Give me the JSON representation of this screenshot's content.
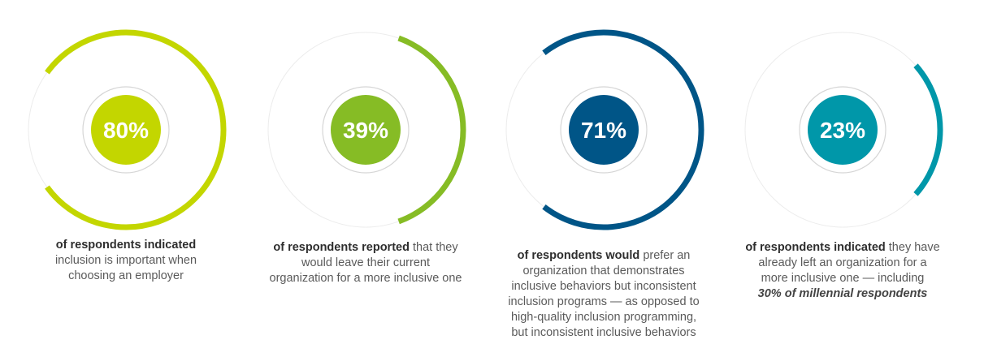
{
  "chart_data": [
    {
      "type": "pie",
      "value": 80,
      "label": "80%",
      "color": "#c3d600",
      "caption": {
        "lead": "of respondents indicated",
        "rest": [
          "inclusion is important when",
          "choosing an employer"
        ]
      }
    },
    {
      "type": "pie",
      "value": 39,
      "label": "39%",
      "color": "#86bc25",
      "caption": {
        "lead": "of respondents reported",
        "rest": [
          "that they",
          "would leave their current",
          "organization for a more inclusive one"
        ]
      }
    },
    {
      "type": "pie",
      "value": 71,
      "label": "71%",
      "color": "#005587",
      "caption": {
        "lead": "of respondents would",
        "rest": [
          "prefer an",
          "organization that demonstrates",
          "inclusive behaviors but inconsistent",
          "inclusion programs — as opposed to",
          "high-quality inclusion programming,",
          "but inconsistent inclusive behaviors"
        ]
      }
    },
    {
      "type": "pie",
      "value": 23,
      "label": "23%",
      "color": "#0097a9",
      "caption": {
        "lead": "of respondents indicated",
        "rest": [
          "they have",
          "already left an organization for a",
          "more inclusive one — including"
        ],
        "note": "30% of millennial respondents"
      }
    }
  ]
}
